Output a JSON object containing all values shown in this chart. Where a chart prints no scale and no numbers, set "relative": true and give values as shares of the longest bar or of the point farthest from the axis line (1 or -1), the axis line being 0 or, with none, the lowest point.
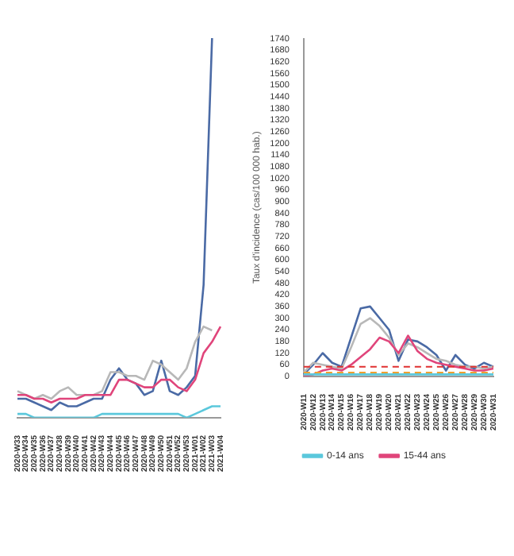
{
  "chart_data": [
    {
      "type": "line",
      "relative": true,
      "categories": [
        "2020-W33",
        "2020-W34",
        "2020-W35",
        "2020-W36",
        "2020-W37",
        "2020-W38",
        "2020-W39",
        "2020-W40",
        "2020-W41",
        "2020-W42",
        "2020-W43",
        "2020-W44",
        "2020-W45",
        "2020-W46",
        "2020-W47",
        "2020-W48",
        "2020-W49",
        "2020-W50",
        "2020-W51",
        "2020-W52",
        "2020-W53",
        "2021-W01",
        "2021-W02",
        "2021-W03",
        "2021-W04"
      ],
      "series": [
        {
          "color": "#5bc8dc",
          "values": [
            0.01,
            0.01,
            0.0,
            0.0,
            0.0,
            0.0,
            0.0,
            0.0,
            0.0,
            0.0,
            0.01,
            0.01,
            0.01,
            0.01,
            0.01,
            0.01,
            0.01,
            0.01,
            0.01,
            0.01,
            0.0,
            0.01,
            0.02,
            0.03,
            0.03
          ]
        },
        {
          "color": "#e0457b",
          "values": [
            0.06,
            0.06,
            0.05,
            0.05,
            0.04,
            0.05,
            0.05,
            0.05,
            0.06,
            0.06,
            0.06,
            0.06,
            0.1,
            0.1,
            0.09,
            0.08,
            0.08,
            0.1,
            0.1,
            0.08,
            0.07,
            0.1,
            0.17,
            0.2,
            0.24
          ]
        },
        {
          "color": "#b8b8b8",
          "values": [
            0.07,
            0.06,
            0.05,
            0.06,
            0.05,
            0.07,
            0.08,
            0.06,
            0.06,
            0.06,
            0.07,
            0.12,
            0.12,
            0.11,
            0.11,
            0.1,
            0.15,
            0.14,
            0.12,
            0.1,
            0.13,
            0.2,
            0.24,
            0.23,
            null
          ]
        },
        {
          "color": "#4a6aa5",
          "values": [
            0.05,
            0.05,
            0.04,
            0.03,
            0.02,
            0.04,
            0.03,
            0.03,
            0.04,
            0.05,
            0.05,
            0.1,
            0.13,
            0.1,
            0.09,
            0.06,
            0.07,
            0.15,
            0.07,
            0.06,
            0.08,
            0.11,
            0.35,
            1.0,
            null
          ]
        }
      ]
    },
    {
      "type": "line",
      "ylabel": "Taux d'incidence (cas/100 000 hab.)",
      "categories": [
        "2020-W11",
        "2020-W12",
        "2020-W13",
        "2020-W14",
        "2020-W15",
        "2020-W16",
        "2020-W17",
        "2020-W18",
        "2020-W19",
        "2020-W20",
        "2020-W21",
        "2020-W22",
        "2020-W23",
        "2020-W24",
        "2020-W25",
        "2020-W26",
        "2020-W27",
        "2020-W28",
        "2020-W29",
        "2020-W30",
        "2020-W31"
      ],
      "ylim": [
        0,
        1740
      ],
      "yticks": [
        0,
        60,
        120,
        180,
        240,
        300,
        360,
        420,
        480,
        540,
        600,
        660,
        720,
        780,
        840,
        900,
        960,
        1020,
        1080,
        1140,
        1200,
        1260,
        1320,
        1380,
        1440,
        1500,
        1560,
        1620,
        1680,
        1740
      ],
      "legend": "bottom",
      "ref_lines": [
        {
          "axis": "y",
          "value": 50,
          "color": "#e03030",
          "line_style": "dashed"
        },
        {
          "axis": "y",
          "value": 20,
          "color": "#f0a030",
          "line_style": "dashed"
        }
      ],
      "series": [
        {
          "name": "0-14 ans",
          "color": "#5bc8dc",
          "values": [
            10,
            10,
            10,
            10,
            10,
            10,
            10,
            10,
            10,
            10,
            10,
            10,
            10,
            10,
            10,
            10,
            10,
            10,
            10,
            10,
            10
          ]
        },
        {
          "name": "15-44 ans",
          "color": "#e0457b",
          "values": [
            0,
            10,
            30,
            40,
            30,
            60,
            100,
            140,
            200,
            180,
            120,
            210,
            130,
            90,
            70,
            60,
            50,
            40,
            30,
            30,
            40
          ]
        },
        {
          "color": "#b8b8b8",
          "values": [
            20,
            70,
            60,
            50,
            40,
            150,
            270,
            300,
            260,
            200,
            110,
            170,
            150,
            120,
            90,
            80,
            60,
            50,
            50,
            40,
            50
          ]
        },
        {
          "color": "#4a6aa5",
          "values": [
            10,
            60,
            120,
            70,
            50,
            200,
            350,
            360,
            300,
            240,
            80,
            190,
            180,
            150,
            110,
            30,
            110,
            60,
            40,
            70,
            50
          ]
        }
      ]
    }
  ]
}
